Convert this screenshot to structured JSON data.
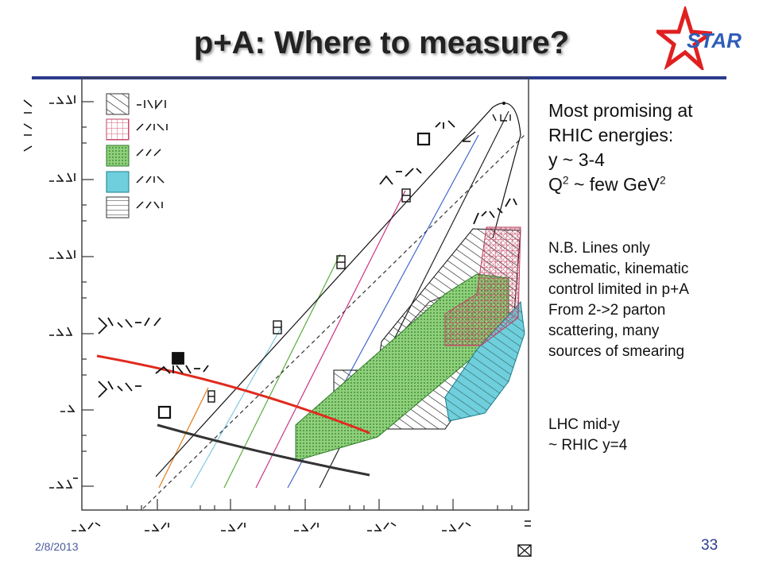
{
  "slide": {
    "title": "p+A: Where to measure?",
    "logo_text": "STAR",
    "date": "2/8/2013",
    "page_number": "33"
  },
  "side_text": {
    "headline": [
      "Most promising at",
      "RHIC energies:",
      "y ~ 3-4"
    ],
    "q2_prefix": "Q",
    "q2_sup": "2",
    "q2_suffix": " ~ few GeV",
    "q2_unit_sup": "2",
    "note_lines": [
      "N.B. Lines only",
      "schematic, kinematic",
      "control limited in p+A",
      "From 2->2 parton",
      "scattering, many",
      "sources of smearing"
    ],
    "footer_lines": [
      "LHC mid-y",
      "~ RHIC y=4"
    ]
  },
  "colors": {
    "title_rule": "#2b3c8c",
    "logo_star": "#e02020",
    "logo_text": "#2f5db8",
    "saturation_line": "#e02a1e",
    "dark_line": "#333333",
    "green_fill": "#8fd07a",
    "cyan_fill": "#6fcfdc",
    "hatch_red": "#d05a7a",
    "rapidity_colors": [
      "#e07b1a",
      "#7fc8e0",
      "#5aad3a",
      "#cc3388",
      "#4466cc",
      "#222222"
    ]
  }
}
